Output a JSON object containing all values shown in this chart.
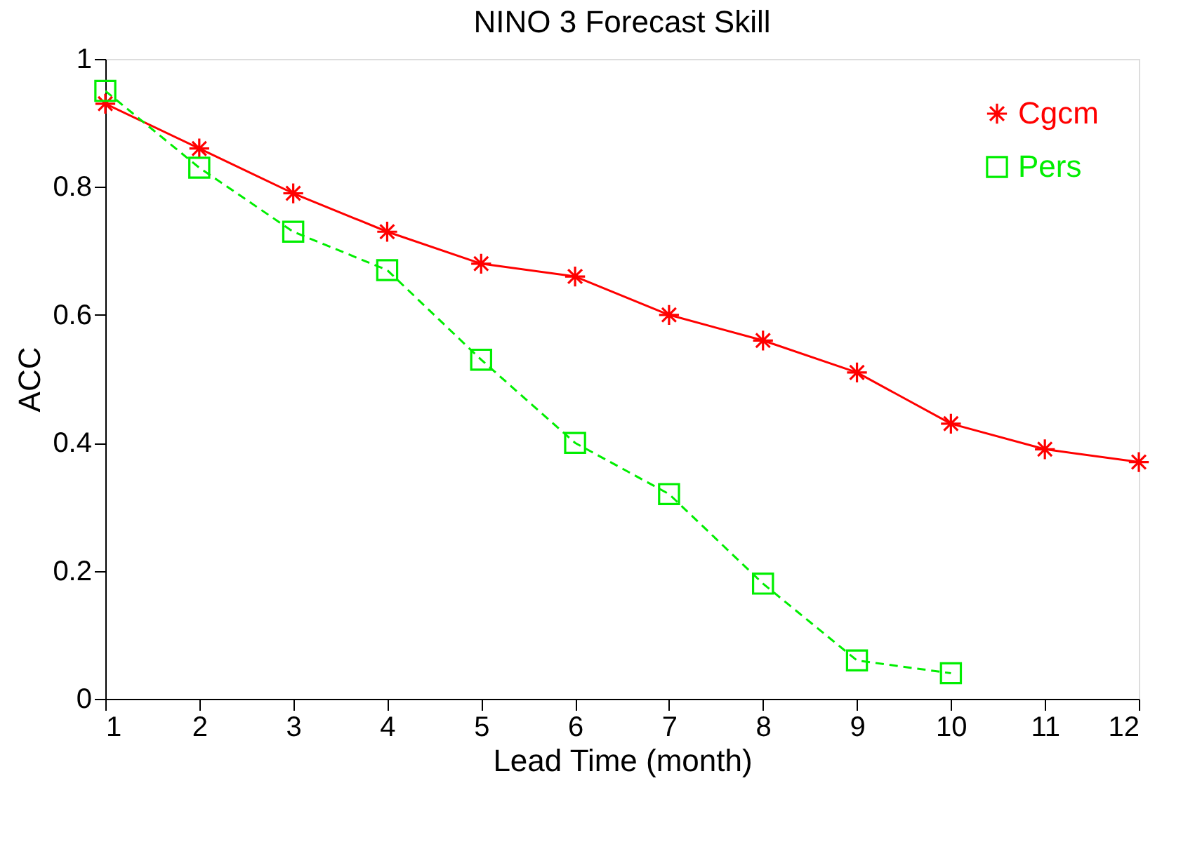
{
  "chart_data": {
    "type": "line",
    "title": "NINO 3 Forecast Skill",
    "xlabel": "Lead Time (month)",
    "ylabel": "ACC",
    "x": [
      1,
      2,
      3,
      4,
      5,
      6,
      7,
      8,
      9,
      10,
      11,
      12
    ],
    "series": [
      {
        "name": "Cgcm",
        "color": "#ff0000",
        "marker": "cross",
        "line_style": "solid",
        "values": [
          0.93,
          0.86,
          0.79,
          0.73,
          0.68,
          0.66,
          0.6,
          0.56,
          0.51,
          0.43,
          0.39,
          0.37
        ]
      },
      {
        "name": "Pers",
        "color": "#00ee00",
        "marker": "square",
        "line_style": "dashed",
        "values": [
          0.95,
          0.83,
          0.73,
          0.67,
          0.53,
          0.4,
          0.32,
          0.18,
          0.06,
          0.04,
          null,
          null
        ]
      }
    ],
    "xlim": [
      1,
      12
    ],
    "xticks": [
      1,
      2,
      3,
      4,
      5,
      6,
      7,
      8,
      9,
      10,
      11,
      12
    ],
    "ylim": [
      0,
      1
    ],
    "yticks": [
      0,
      0.2,
      0.4,
      0.6,
      0.8,
      1
    ],
    "grid": false,
    "legend": "top right"
  }
}
